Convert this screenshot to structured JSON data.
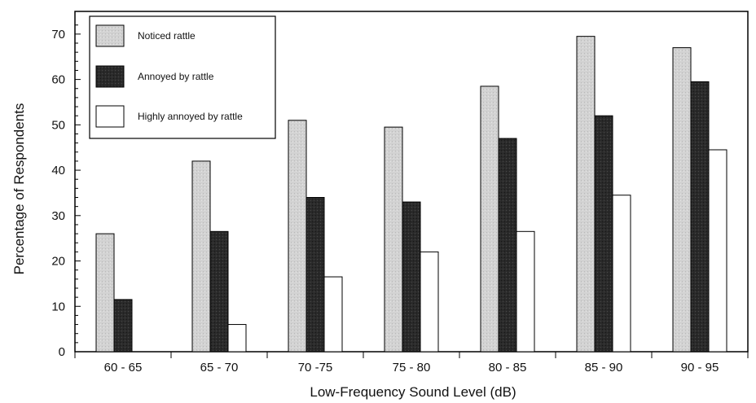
{
  "chart_data": {
    "type": "bar",
    "title": "",
    "xlabel": "Low-Frequency Sound Level (dB)",
    "ylabel": "Percentage of Respondents",
    "ylim": [
      0,
      75
    ],
    "yticks": [
      0,
      10,
      20,
      30,
      40,
      50,
      60,
      70
    ],
    "categories": [
      "60 - 65",
      "65 - 70",
      "70 -75",
      "75 - 80",
      "80 - 85",
      "85 - 90",
      "90 - 95"
    ],
    "series": [
      {
        "name": "Noticed rattle",
        "color": "#d4d4d4",
        "values": [
          26,
          42,
          51,
          49.5,
          58.5,
          69.5,
          67
        ]
      },
      {
        "name": "Annoyed by rattle",
        "color": "#2b2b2b",
        "values": [
          11.5,
          26.5,
          34,
          33,
          47,
          52,
          59.5
        ]
      },
      {
        "name": "Highly annoyed by rattle",
        "color": "#ffffff",
        "values": [
          0,
          6,
          16.5,
          22,
          26.5,
          34.5,
          44.5
        ]
      }
    ],
    "legend_position": "top-left",
    "grid": false
  }
}
